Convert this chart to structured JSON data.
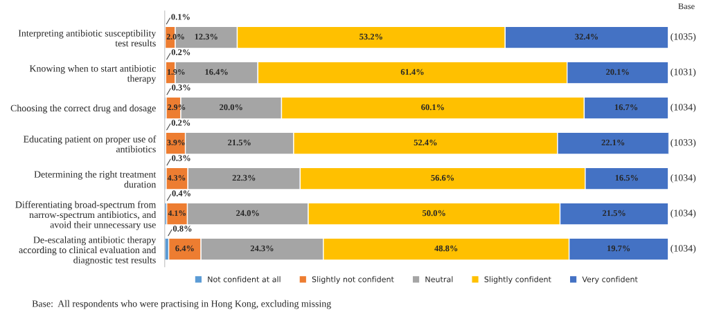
{
  "chart_data": {
    "type": "bar",
    "orientation": "horizontal",
    "stacked": true,
    "legend": "bottom",
    "grid": false,
    "categories": [
      "Interpreting antibiotic susceptibility\ntest results",
      "Knowing when to start antibiotic\ntherapy",
      "Choosing the correct drug and dosage",
      "Educating patient on proper use of\nantibiotics",
      "Determining the right treatment\nduration",
      "Differentiating broad-spectrum from\nnarrow-spectrum antibiotics, and\navoid their unnecessary use",
      "De-escalating antibiotic therapy\naccording to clinical evaluation and\ndiagnostic test results"
    ],
    "series": [
      {
        "name": "Not confident at all",
        "color": "#5b9bd5",
        "values": [
          0.1,
          0.2,
          0.3,
          0.2,
          0.3,
          0.4,
          0.8
        ],
        "value_labels": [
          "0.1%",
          "0.2%",
          "0.3%",
          "0.2%",
          "0.3%",
          "0.4%",
          "0.8%"
        ]
      },
      {
        "name": "Slightly not confident",
        "color": "#ed7d31",
        "values": [
          2.0,
          1.9,
          2.9,
          3.9,
          4.3,
          4.1,
          6.4
        ],
        "value_labels": [
          "2.0%",
          "1.9%",
          "2.9%",
          "3.9%",
          "4.3%",
          "4.1%",
          "6.4%"
        ]
      },
      {
        "name": "Neutral",
        "color": "#a5a5a5",
        "values": [
          12.3,
          16.4,
          20.0,
          21.5,
          22.3,
          24.0,
          24.3
        ],
        "value_labels": [
          "12.3%",
          "16.4%",
          "20.0%",
          "21.5%",
          "22.3%",
          "24.0%",
          "24.3%"
        ]
      },
      {
        "name": "Slightly confident",
        "color": "#ffc000",
        "values": [
          53.2,
          61.4,
          60.1,
          52.4,
          56.6,
          50.0,
          48.8
        ],
        "value_labels": [
          "53.2%",
          "61.4%",
          "60.1%",
          "52.4%",
          "56.6%",
          "50.0%",
          "48.8%"
        ]
      },
      {
        "name": "Very confident",
        "color": "#4472c4",
        "values": [
          32.4,
          20.1,
          16.7,
          22.1,
          16.5,
          21.5,
          19.7
        ],
        "value_labels": [
          "32.4%",
          "20.1%",
          "16.7%",
          "22.1%",
          "16.5%",
          "21.5%",
          "19.7%"
        ]
      }
    ],
    "annotations": [
      "Base",
      "(1035)",
      "(1031)",
      "(1034)",
      "(1033)",
      "(1034)",
      "(1034)",
      "(1034)",
      "Base:  All respondents who were practising in Hong Kong, excluding missing"
    ]
  }
}
